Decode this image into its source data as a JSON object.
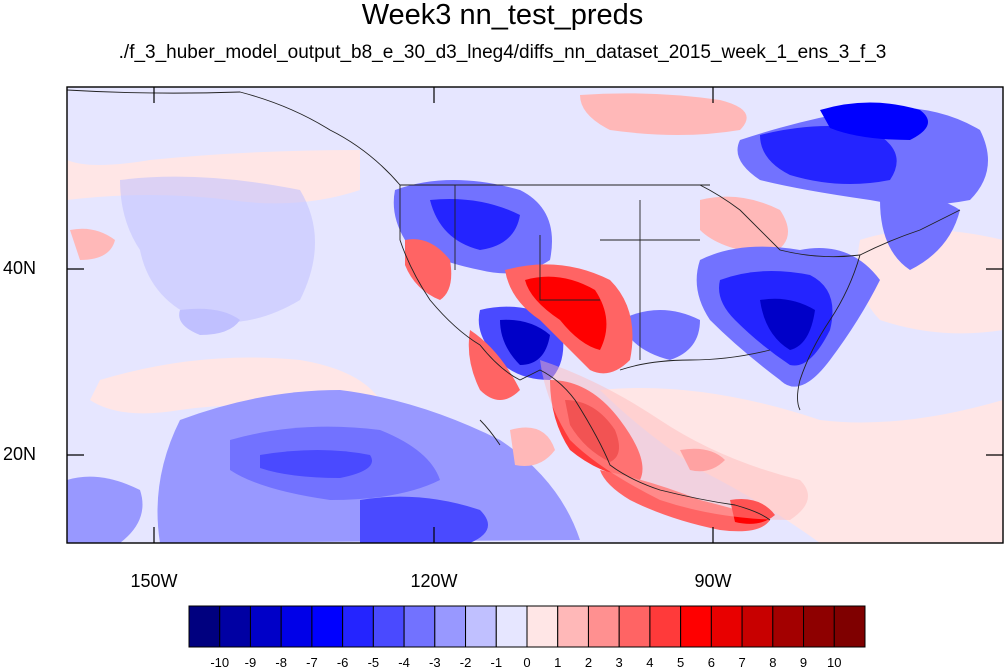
{
  "title": "Week3 nn_test_preds",
  "subtitle": "./f_3_huber_model_output_b8_e_30_d3_lneg4/diffs_nn_dataset_2015_week_1_ens_3_f_3",
  "axes": {
    "lat_labels": [
      "40N",
      "20N"
    ],
    "lon_labels": [
      "150W",
      "120W",
      "90W"
    ]
  },
  "colorbar": {
    "labels": [
      "-10",
      "-9",
      "-8",
      "-7",
      "-6",
      "-5",
      "-4",
      "-3",
      "-2",
      "-1",
      "0",
      "1",
      "2",
      "3",
      "4",
      "5",
      "6",
      "7",
      "8",
      "9",
      "10"
    ],
    "colors": [
      "#00007f",
      "#0000a3",
      "#0000c8",
      "#0000e8",
      "#0000ff",
      "#2424ff",
      "#4a4aff",
      "#7272ff",
      "#9898ff",
      "#c0c0ff",
      "#e6e6ff",
      "#ffe6e6",
      "#ffb8b8",
      "#ff9090",
      "#ff6464",
      "#ff3a3a",
      "#ff0000",
      "#e80000",
      "#c80000",
      "#a30000",
      "#8e0000",
      "#7f0000"
    ]
  }
}
